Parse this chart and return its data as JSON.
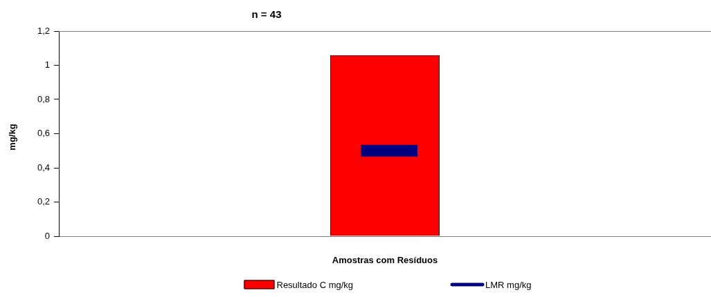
{
  "chart_data": {
    "type": "bar",
    "title": "n = 43",
    "xlabel": "Amostras com Resíduos",
    "ylabel": "mg/kg",
    "categories": [
      null
    ],
    "series": [
      {
        "name": "Resultado C mg/kg",
        "color": "#ff0000",
        "values": [
          1.06
        ]
      }
    ],
    "ref_lines": [
      {
        "axis": "y",
        "value": 0.5,
        "label": "LMR mg/kg",
        "color": "#000080"
      }
    ],
    "ylim": [
      0,
      1.2
    ],
    "yticks": [
      0,
      {
        "value": 0.2,
        "label": "0,2"
      },
      {
        "value": 0.4,
        "label": "0,4"
      },
      {
        "value": 0.6,
        "label": "0,6"
      },
      {
        "value": 0.8,
        "label": "0,8"
      },
      1,
      {
        "value": 1.2,
        "label": "1,2"
      }
    ],
    "legend": "bottom"
  }
}
